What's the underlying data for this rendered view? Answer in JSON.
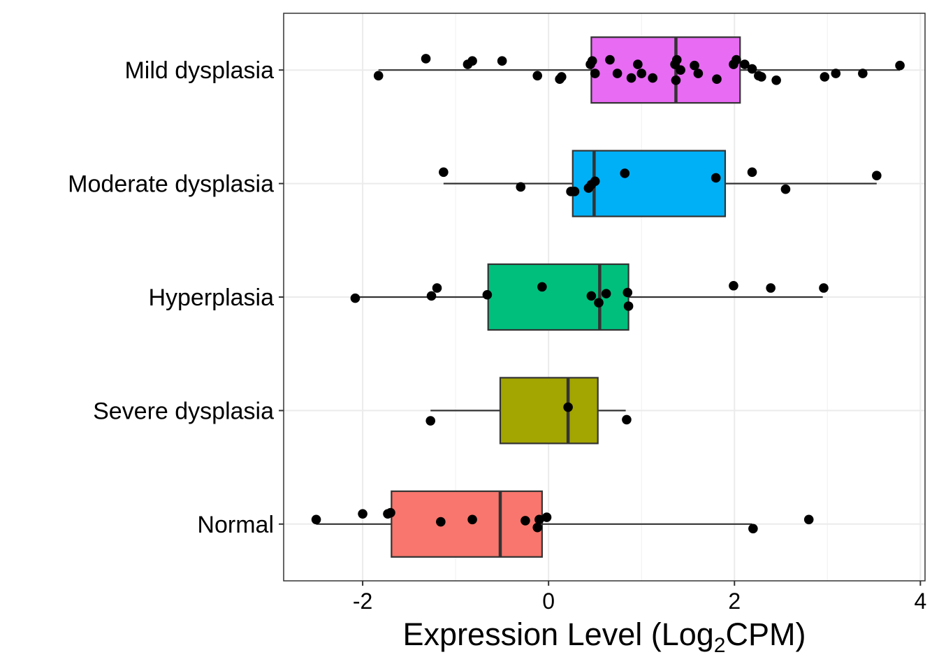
{
  "chart_data": {
    "type": "boxplot",
    "orientation": "horizontal",
    "xlabel": {
      "prefix": "Expression Level (Log",
      "subscript": "2",
      "suffix": "CPM)"
    },
    "xlim": [
      -2.85,
      4.05
    ],
    "xticks": [
      -2,
      0,
      2,
      4
    ],
    "xtick_labels": [
      "-2",
      "0",
      "2",
      "4"
    ],
    "grid": true,
    "legend": "none",
    "groups": [
      {
        "label": "Mild dysplasia",
        "color": "#E76BF3",
        "whisker_low": -1.83,
        "q1": 0.46,
        "median": 1.37,
        "q3": 2.06,
        "whisker_high": 3.78,
        "points": [
          [
            -1.83,
            -0.05
          ],
          [
            -1.32,
            0.1
          ],
          [
            -0.87,
            0.05
          ],
          [
            -0.82,
            0.08
          ],
          [
            -0.5,
            0.08
          ],
          [
            -0.12,
            -0.05
          ],
          [
            0.12,
            -0.08
          ],
          [
            0.14,
            -0.06
          ],
          [
            0.45,
            0.05
          ],
          [
            0.47,
            0.08
          ],
          [
            0.5,
            -0.03
          ],
          [
            0.66,
            0.09
          ],
          [
            0.74,
            -0.03
          ],
          [
            0.89,
            -0.07
          ],
          [
            0.96,
            0.05
          ],
          [
            1.0,
            -0.03
          ],
          [
            1.12,
            -0.07
          ],
          [
            1.36,
            0.05
          ],
          [
            1.38,
            0.09
          ],
          [
            1.37,
            -0.09
          ],
          [
            1.42,
            0.0
          ],
          [
            1.57,
            0.04
          ],
          [
            1.61,
            -0.03
          ],
          [
            1.81,
            -0.08
          ],
          [
            1.99,
            0.05
          ],
          [
            2.02,
            0.09
          ],
          [
            2.11,
            0.05
          ],
          [
            2.19,
            0.01
          ],
          [
            2.26,
            -0.05
          ],
          [
            2.29,
            -0.06
          ],
          [
            2.45,
            -0.09
          ],
          [
            2.97,
            -0.06
          ],
          [
            3.09,
            -0.03
          ],
          [
            3.38,
            -0.03
          ],
          [
            3.78,
            0.04
          ]
        ]
      },
      {
        "label": "Moderate dysplasia",
        "color": "#00B0F6",
        "whisker_low": -1.13,
        "q1": 0.26,
        "median": 0.49,
        "q3": 1.9,
        "whisker_high": 3.53,
        "points": [
          [
            -1.13,
            0.1
          ],
          [
            -0.3,
            -0.03
          ],
          [
            0.24,
            -0.07
          ],
          [
            0.28,
            -0.07
          ],
          [
            0.43,
            -0.04
          ],
          [
            0.46,
            -0.01
          ],
          [
            0.5,
            0.02
          ],
          [
            0.82,
            0.09
          ],
          [
            1.8,
            0.05
          ],
          [
            2.19,
            0.1
          ],
          [
            2.55,
            -0.05
          ],
          [
            3.53,
            0.07
          ]
        ]
      },
      {
        "label": "Hyperplasia",
        "color": "#00BF7D",
        "whisker_low": -2.08,
        "q1": -0.65,
        "median": 0.55,
        "q3": 0.86,
        "whisker_high": 2.95,
        "points": [
          [
            -2.08,
            -0.01
          ],
          [
            -1.2,
            0.08
          ],
          [
            -1.26,
            0.01
          ],
          [
            -0.66,
            0.02
          ],
          [
            -0.07,
            0.09
          ],
          [
            0.46,
            0.01
          ],
          [
            0.54,
            -0.05
          ],
          [
            0.62,
            0.03
          ],
          [
            0.85,
            0.04
          ],
          [
            0.86,
            -0.08
          ],
          [
            1.99,
            0.1
          ],
          [
            2.39,
            0.08
          ],
          [
            2.96,
            0.08
          ]
        ]
      },
      {
        "label": "Severe dysplasia",
        "color": "#A3A500",
        "whisker_low": -1.27,
        "q1": -0.52,
        "median": 0.21,
        "q3": 0.53,
        "whisker_high": 0.83,
        "points": [
          [
            -1.27,
            -0.09
          ],
          [
            0.21,
            0.03
          ],
          [
            0.84,
            -0.08
          ]
        ]
      },
      {
        "label": "Normal",
        "color": "#F8766D",
        "whisker_low": -2.5,
        "q1": -1.69,
        "median": -0.52,
        "q3": -0.07,
        "whisker_high": 2.19,
        "points": [
          [
            -2.5,
            0.04
          ],
          [
            -2.0,
            0.09
          ],
          [
            -1.73,
            0.09
          ],
          [
            -1.7,
            0.1
          ],
          [
            -1.16,
            0.02
          ],
          [
            -0.82,
            0.04
          ],
          [
            -0.25,
            0.03
          ],
          [
            -0.1,
            0.04
          ],
          [
            -0.02,
            0.06
          ],
          [
            -0.12,
            -0.03
          ],
          [
            2.2,
            -0.04
          ],
          [
            2.8,
            0.04
          ]
        ]
      }
    ]
  }
}
